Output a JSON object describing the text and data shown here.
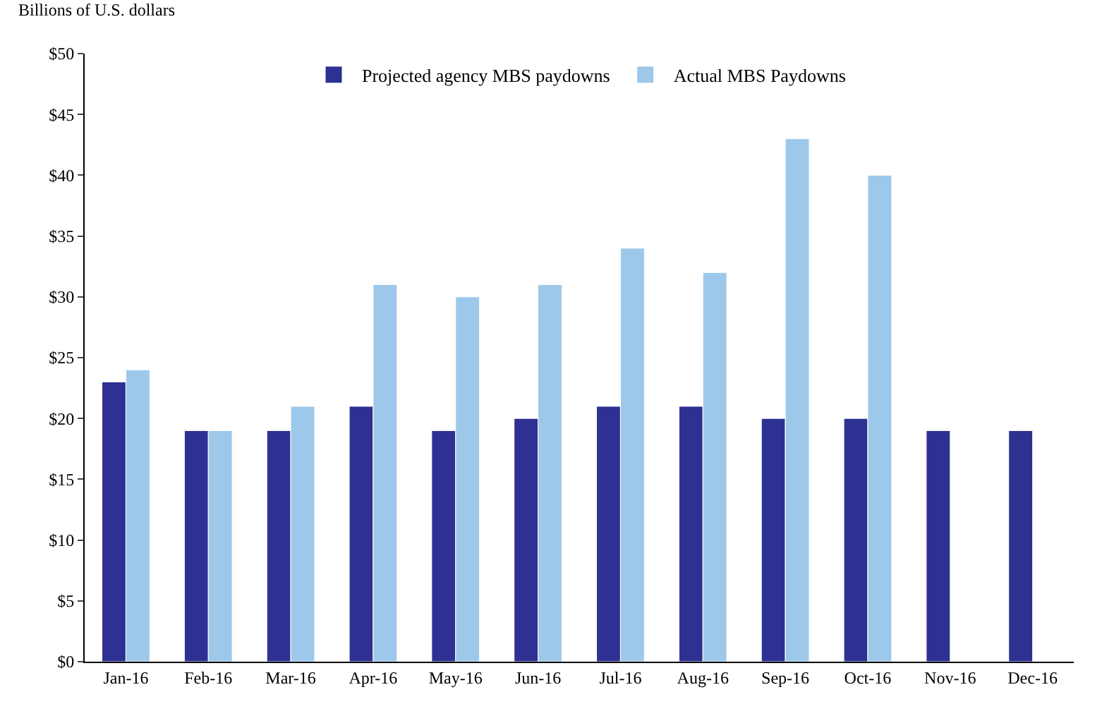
{
  "chart_data": {
    "type": "bar",
    "ylabel": "Billions of U.S. dollars",
    "categories": [
      "Jan-16",
      "Feb-16",
      "Mar-16",
      "Apr-16",
      "May-16",
      "Jun-16",
      "Jul-16",
      "Aug-16",
      "Sep-16",
      "Oct-16",
      "Nov-16",
      "Dec-16"
    ],
    "series": [
      {
        "name": "Projected agency MBS paydowns",
        "color": "#2e3192",
        "values": [
          23,
          19,
          19,
          21,
          19,
          20,
          21,
          21,
          20,
          20,
          19,
          19
        ]
      },
      {
        "name": "Actual MBS Paydowns",
        "color": "#9dc8ea",
        "values": [
          24,
          19,
          21,
          31,
          30,
          31,
          34,
          32,
          43,
          40,
          null,
          null
        ]
      }
    ],
    "ylim": [
      0,
      50
    ],
    "yticks": [
      {
        "value": 0,
        "label": "$0"
      },
      {
        "value": 5,
        "label": "$5"
      },
      {
        "value": 10,
        "label": "$10"
      },
      {
        "value": 15,
        "label": "$15"
      },
      {
        "value": 20,
        "label": "$20"
      },
      {
        "value": 25,
        "label": "$25"
      },
      {
        "value": 30,
        "label": "$30"
      },
      {
        "value": 35,
        "label": "$35"
      },
      {
        "value": 40,
        "label": "$40"
      },
      {
        "value": 45,
        "label": "$45"
      },
      {
        "value": 50,
        "label": "$50"
      }
    ],
    "grid": false,
    "legend": "top"
  }
}
